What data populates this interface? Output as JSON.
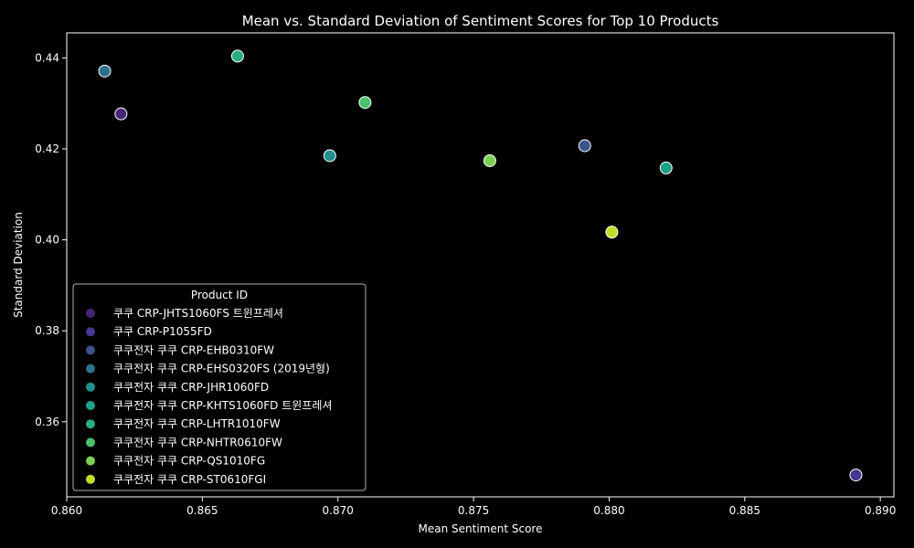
{
  "chart_data": {
    "type": "scatter",
    "title": "Mean vs. Standard Deviation of Sentiment Scores for Top 10 Products",
    "xlabel": "Mean Sentiment Score",
    "ylabel": "Standard Deviation",
    "xlim": [
      0.86,
      0.8905
    ],
    "ylim": [
      0.3435,
      0.4455
    ],
    "xticks": [
      "0.860",
      "0.865",
      "0.870",
      "0.875",
      "0.880",
      "0.885",
      "0.890"
    ],
    "yticks": [
      "0.36",
      "0.38",
      "0.40",
      "0.42",
      "0.44"
    ],
    "grid": false,
    "legend_title": "Product ID",
    "legend_position": "lower-left",
    "background": "#000000",
    "series": [
      {
        "name": "쿠쿠 CRP-JHTS1060FS 트윈프레셔",
        "color": "#482677",
        "x": 0.862,
        "y": 0.4277
      },
      {
        "name": "쿠쿠 CRP-P1055FD",
        "color": "#43398e",
        "x": 0.8891,
        "y": 0.3483
      },
      {
        "name": "쿠쿠전자 쿠쿠 CRP-EHB0310FW",
        "color": "#3b528b",
        "x": 0.8791,
        "y": 0.4207
      },
      {
        "name": "쿠쿠전자 쿠쿠 CRP-EHS0320FS (2019년형)",
        "color": "#2c718e",
        "x": 0.8614,
        "y": 0.4371
      },
      {
        "name": "쿠쿠전자 쿠쿠 CRP-JHR1060FD",
        "color": "#21908d",
        "x": 0.8697,
        "y": 0.4185
      },
      {
        "name": "쿠쿠전자 쿠쿠 CRP-KHTS1060FD 트윈프레셔",
        "color": "#1fa088",
        "x": 0.8821,
        "y": 0.4158
      },
      {
        "name": "쿠쿠전자 쿠쿠 CRP-LHTR1010FW",
        "color": "#27ad81",
        "x": 0.8663,
        "y": 0.4404
      },
      {
        "name": "쿠쿠전자 쿠쿠 CRP-NHTR0610FW",
        "color": "#4ac16d",
        "x": 0.871,
        "y": 0.4302
      },
      {
        "name": "쿠쿠전자 쿠쿠 CRP-QS1010FG",
        "color": "#7ad151",
        "x": 0.8756,
        "y": 0.4174
      },
      {
        "name": "쿠쿠전자 쿠쿠 CRP-ST0610FGI",
        "color": "#bddf26",
        "x": 0.8801,
        "y": 0.4017
      }
    ]
  }
}
